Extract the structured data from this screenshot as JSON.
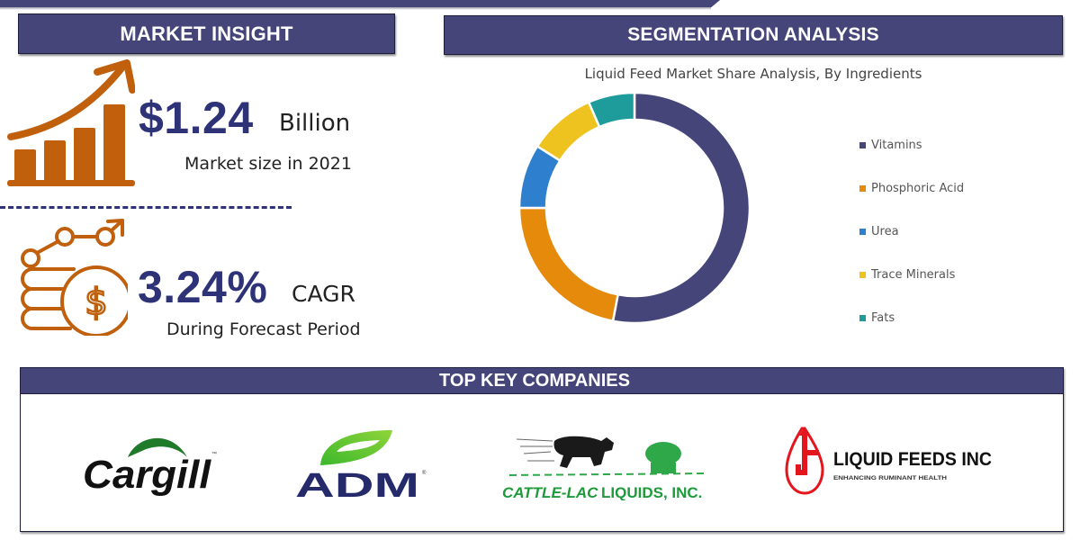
{
  "market_insight": {
    "header": "MARKET INSIGHT",
    "market_size": {
      "value": "$1.24",
      "unit": "Billion",
      "caption": "Market size in 2021",
      "icon": "growth-bar-chart-icon"
    },
    "cagr": {
      "value": "3.24%",
      "unit": "CAGR",
      "caption": "During Forecast Period",
      "icon": "coins-growth-icon"
    }
  },
  "segmentation": {
    "header": "SEGMENTATION ANALYSIS"
  },
  "chart_data": {
    "type": "pie",
    "donut": true,
    "title": "Liquid Feed Market Share Analysis, By Ingredients",
    "categories": [
      "Vitamins",
      "Phosphoric Acid",
      "Urea",
      "Trace Minerals",
      "Fats"
    ],
    "values": [
      53,
      22,
      9,
      9.5,
      6.5
    ],
    "colors": [
      "#45457a",
      "#e68a0c",
      "#2f7fcf",
      "#efc31f",
      "#1e9c9c"
    ],
    "legend_position": "right",
    "start_angle": 0,
    "direction": "clockwise"
  },
  "companies": {
    "header": "TOP KEY COMPANIES",
    "items": [
      {
        "name": "Cargill",
        "mark": "™"
      },
      {
        "name": "ADM",
        "mark": "®"
      },
      {
        "name": "CATTLE-LAC",
        "suffix": "LIQUIDS, INC."
      },
      {
        "name": "LIQUID FEEDS INC",
        "tagline": "ENHANCING RUMINANT HEALTH"
      }
    ]
  },
  "colors": {
    "header_bg": "#45457a",
    "kpi_text": "#2e3277",
    "icon_orange": "#c0600d"
  }
}
